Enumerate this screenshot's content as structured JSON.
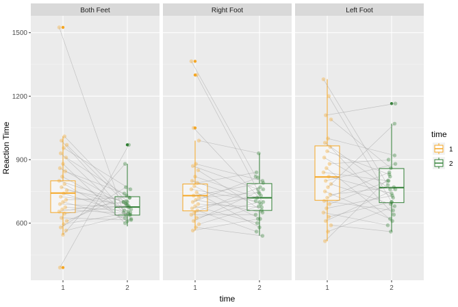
{
  "chart_data": {
    "type": "boxplot",
    "xlabel": "time",
    "ylabel": "Reaction Time",
    "ylim": [
      330,
      1580
    ],
    "yticks": [
      600,
      900,
      1200,
      1500
    ],
    "categories": [
      "1",
      "2"
    ],
    "legend": {
      "title": "time",
      "placement": "right",
      "entries": [
        {
          "label": "1",
          "color": "#f5a623"
        },
        {
          "label": "2",
          "color": "#2e7d32"
        }
      ]
    },
    "panels": [
      {
        "title": "Both Feet",
        "boxes": [
          {
            "time": "1",
            "q1": 650,
            "median": 742,
            "q3": 800,
            "whisker_low": 545,
            "whisker_high": 1010,
            "outliers": [
              1525,
              390
            ]
          },
          {
            "time": "2",
            "q1": 638,
            "median": 676,
            "q3": 725,
            "whisker_low": 585,
            "whisker_high": 880,
            "outliers": [
              970
            ]
          }
        ],
        "pairs": [
          [
            1525,
            650
          ],
          [
            1010,
            700
          ],
          [
            990,
            620
          ],
          [
            970,
            690
          ],
          [
            955,
            760
          ],
          [
            930,
            640
          ],
          [
            910,
            720
          ],
          [
            880,
            600
          ],
          [
            860,
            680
          ],
          [
            845,
            740
          ],
          [
            820,
            655
          ],
          [
            800,
            700
          ],
          [
            785,
            610
          ],
          [
            770,
            665
          ],
          [
            755,
            705
          ],
          [
            740,
            640
          ],
          [
            725,
            690
          ],
          [
            710,
            720
          ],
          [
            700,
            625
          ],
          [
            690,
            675
          ],
          [
            675,
            660
          ],
          [
            665,
            645
          ],
          [
            655,
            700
          ],
          [
            645,
            685
          ],
          [
            625,
            615
          ],
          [
            610,
            730
          ],
          [
            595,
            650
          ],
          [
            580,
            770
          ],
          [
            565,
            640
          ],
          [
            545,
            880
          ],
          [
            390,
            970
          ]
        ]
      },
      {
        "title": "Right Foot",
        "boxes": [
          {
            "time": "1",
            "q1": 658,
            "median": 730,
            "q3": 785,
            "whisker_low": 565,
            "whisker_high": 990,
            "outliers": [
              1365,
              1300,
              1050
            ]
          },
          {
            "time": "2",
            "q1": 660,
            "median": 720,
            "q3": 787,
            "whisker_low": 540,
            "whisker_high": 930,
            "outliers": []
          }
        ],
        "pairs": [
          [
            1365,
            820
          ],
          [
            1300,
            740
          ],
          [
            1050,
            700
          ],
          [
            990,
            930
          ],
          [
            880,
            800
          ],
          [
            870,
            760
          ],
          [
            850,
            660
          ],
          [
            820,
            720
          ],
          [
            800,
            690
          ],
          [
            790,
            840
          ],
          [
            775,
            620
          ],
          [
            760,
            705
          ],
          [
            745,
            580
          ],
          [
            730,
            790
          ],
          [
            720,
            745
          ],
          [
            710,
            650
          ],
          [
            700,
            815
          ],
          [
            690,
            675
          ],
          [
            680,
            600
          ],
          [
            670,
            730
          ],
          [
            660,
            560
          ],
          [
            650,
            770
          ],
          [
            640,
            640
          ],
          [
            625,
            700
          ],
          [
            610,
            760
          ],
          [
            595,
            680
          ],
          [
            580,
            540
          ],
          [
            565,
            620
          ]
        ]
      },
      {
        "title": "Left Foot",
        "boxes": [
          {
            "time": "1",
            "q1": 708,
            "median": 818,
            "q3": 965,
            "whisker_low": 515,
            "whisker_high": 1280,
            "outliers": []
          },
          {
            "time": "2",
            "q1": 697,
            "median": 768,
            "q3": 858,
            "whisker_low": 560,
            "whisker_high": 1070,
            "outliers": [
              1165
            ]
          }
        ],
        "pairs": [
          [
            1280,
            780
          ],
          [
            1200,
            700
          ],
          [
            1110,
            1165
          ],
          [
            1090,
            860
          ],
          [
            1000,
            920
          ],
          [
            980,
            760
          ],
          [
            960,
            640
          ],
          [
            940,
            830
          ],
          [
            910,
            720
          ],
          [
            880,
            900
          ],
          [
            860,
            610
          ],
          [
            840,
            800
          ],
          [
            820,
            740
          ],
          [
            800,
            880
          ],
          [
            785,
            690
          ],
          [
            770,
            1070
          ],
          [
            750,
            620
          ],
          [
            735,
            770
          ],
          [
            720,
            840
          ],
          [
            705,
            660
          ],
          [
            690,
            800
          ],
          [
            670,
            730
          ],
          [
            650,
            590
          ],
          [
            630,
            700
          ],
          [
            610,
            760
          ],
          [
            590,
            560
          ],
          [
            560,
            680
          ],
          [
            515,
            820
          ]
        ]
      }
    ]
  }
}
